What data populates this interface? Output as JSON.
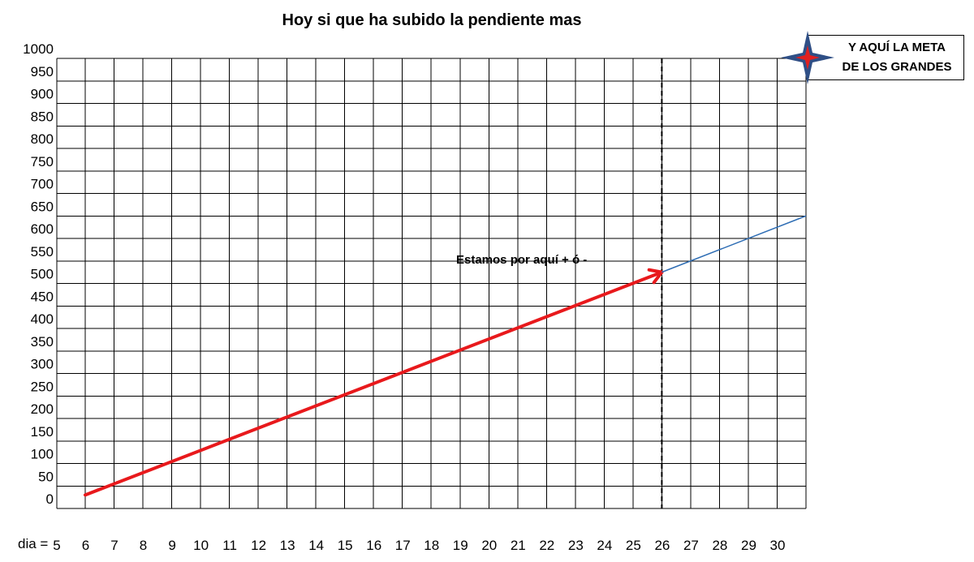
{
  "chart_data": {
    "type": "line",
    "title": "Hoy si que ha subido la pendiente mas",
    "x_prefix_label": "dia =",
    "x_ticks": [
      5,
      6,
      7,
      8,
      9,
      10,
      11,
      12,
      13,
      14,
      15,
      16,
      17,
      18,
      19,
      20,
      21,
      22,
      23,
      24,
      25,
      26,
      27,
      28,
      29,
      30
    ],
    "y_ticks": [
      0,
      50,
      100,
      150,
      200,
      250,
      300,
      350,
      400,
      450,
      500,
      550,
      600,
      650,
      700,
      750,
      800,
      850,
      900,
      950,
      1000
    ],
    "xlim": [
      5,
      30.5
    ],
    "ylim": [
      0,
      1000
    ],
    "grid": true,
    "series": [
      {
        "color": "#e8191c",
        "x": [
          5.5,
          25.5
        ],
        "y": [
          30,
          525
        ],
        "arrow": true
      },
      {
        "color": "#2e6db4",
        "x": [
          25.5,
          30.5
        ],
        "y": [
          525,
          650
        ],
        "arrow": false
      }
    ],
    "marker_line": {
      "x": 25.5,
      "style": "dashed",
      "color": "#000000"
    },
    "annotations": [
      {
        "text": "Estamos por aquí + ó -"
      }
    ],
    "goal_box": {
      "line1": "Y AQUÍ LA META",
      "line2": "DE LOS GRANDES",
      "icon": "compass-star-icon"
    }
  }
}
